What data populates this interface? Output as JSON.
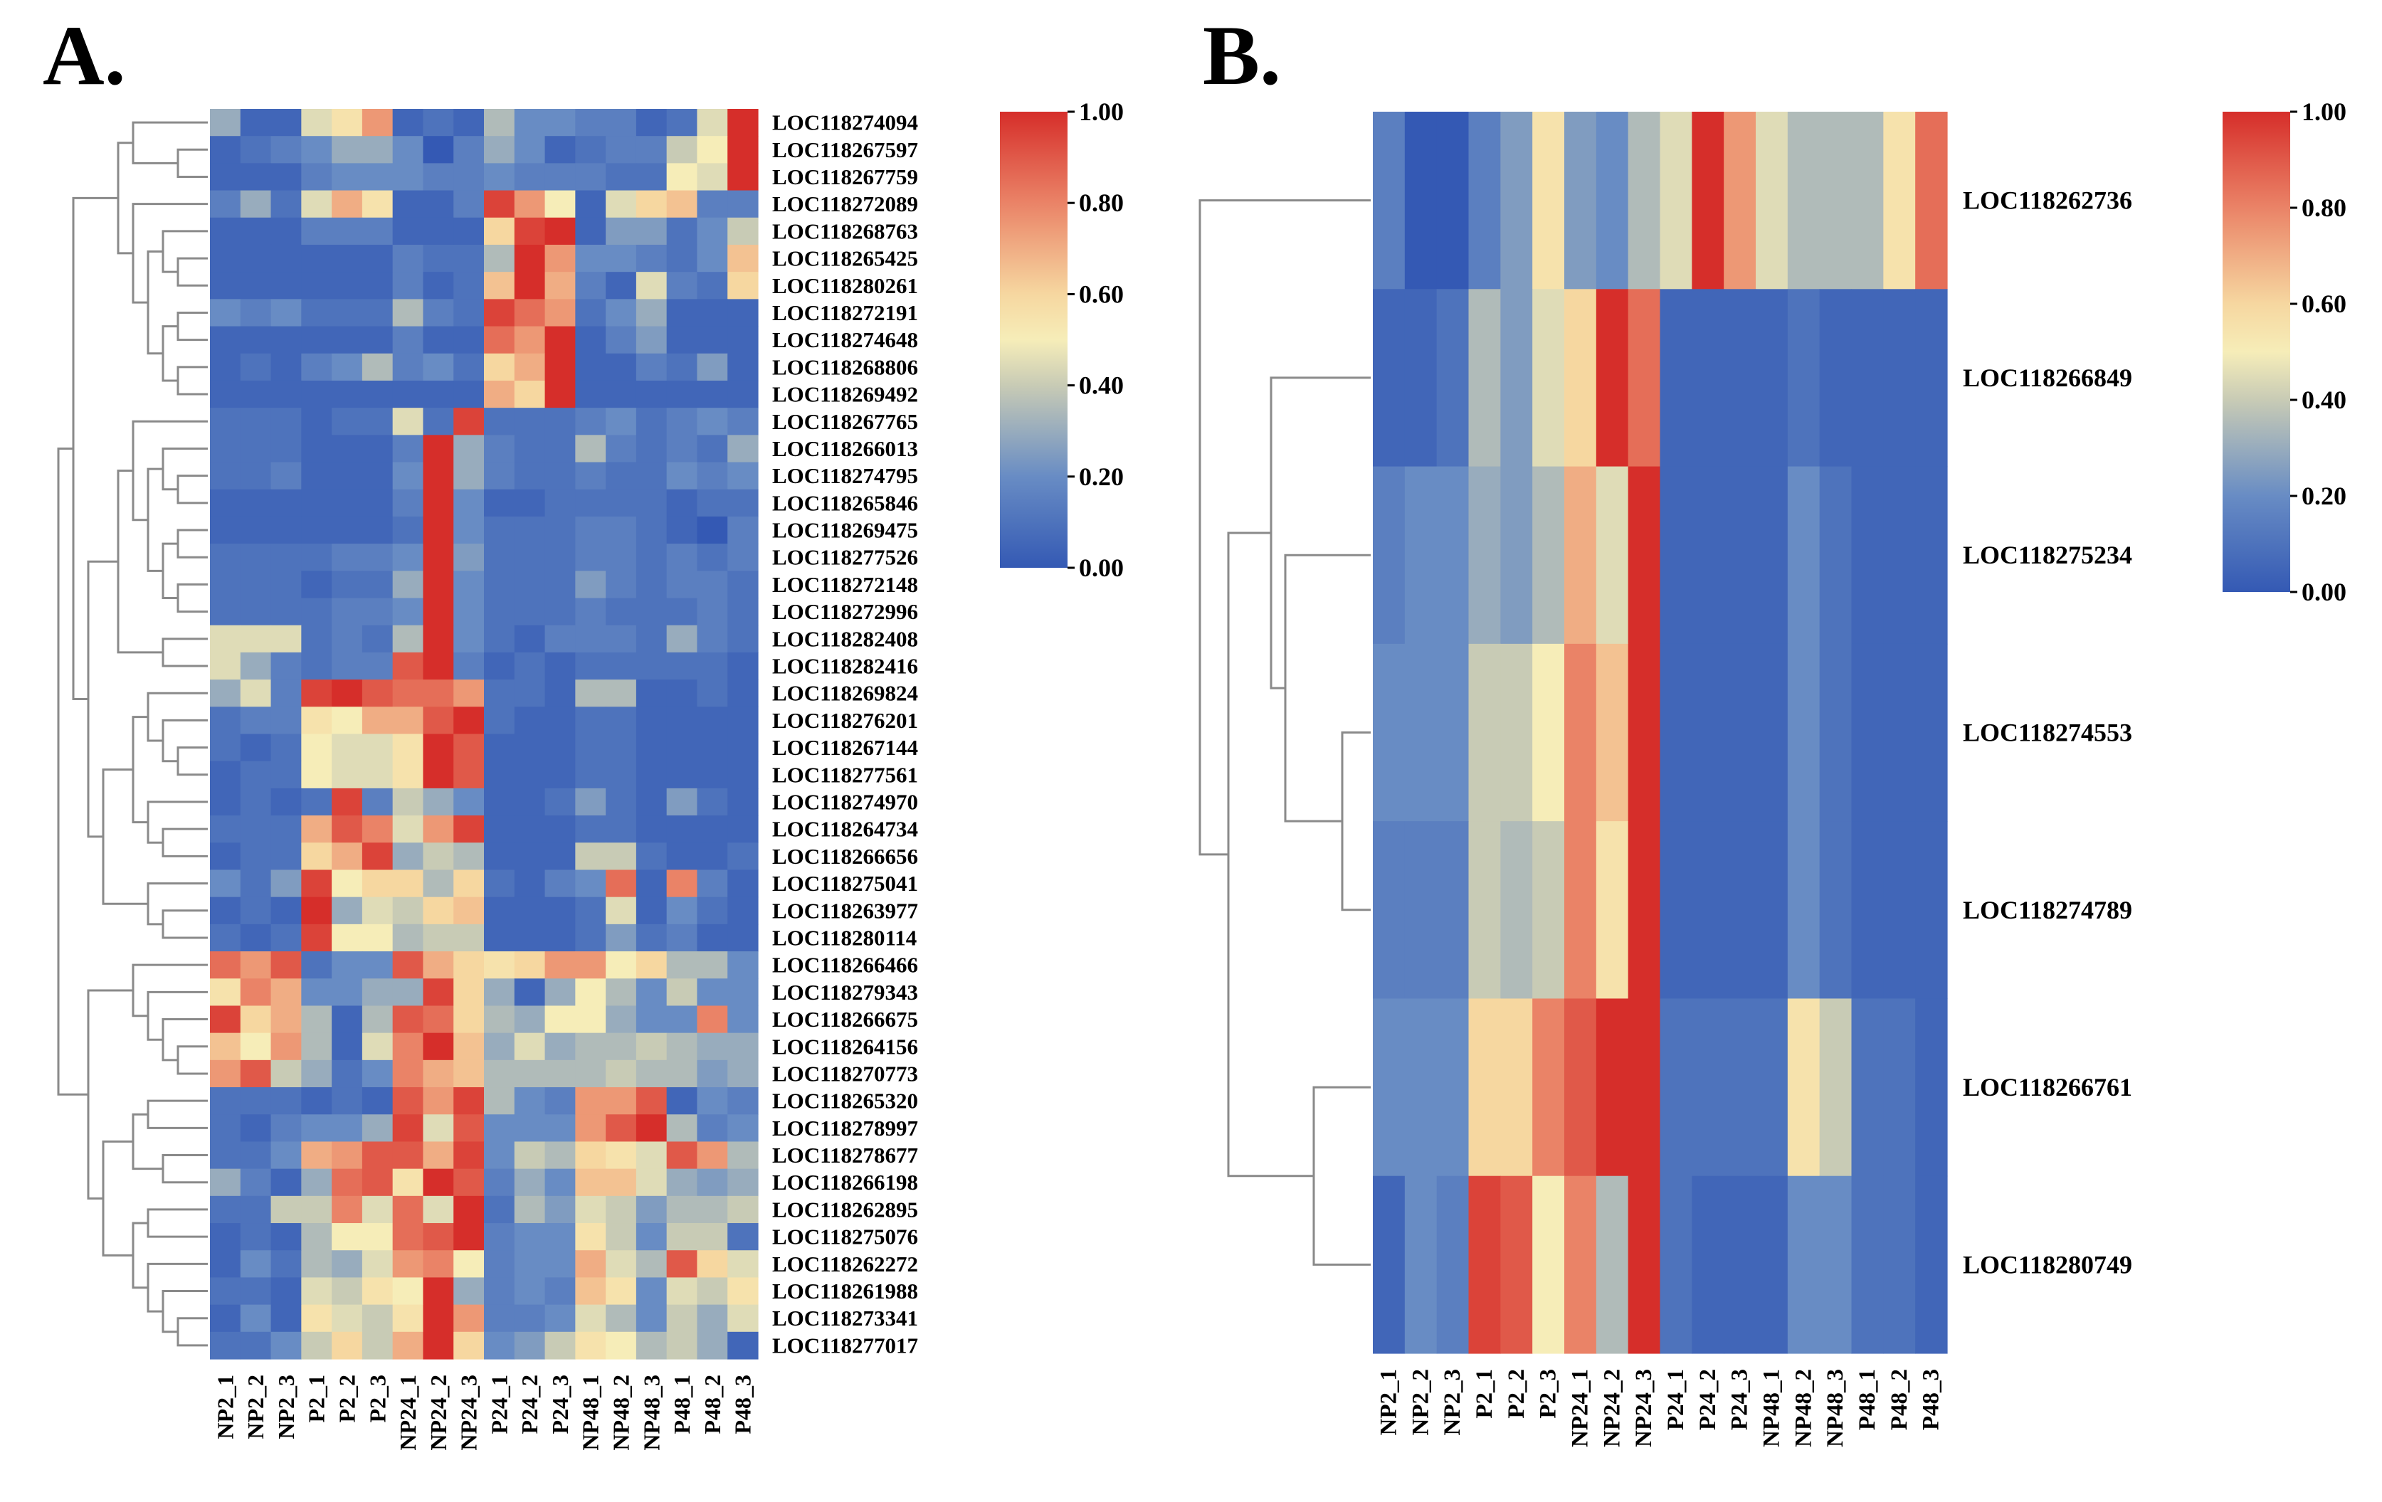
{
  "chart_data": [
    {
      "type": "heatmap",
      "panel_label": "A.",
      "columns": [
        "NP2_1",
        "NP2_2",
        "NP2_3",
        "P2_1",
        "P2_2",
        "P2_3",
        "NP24_1",
        "NP24_2",
        "NP24_3",
        "P24_1",
        "P24_2",
        "P24_3",
        "NP48_1",
        "NP48_2",
        "NP48_3",
        "P48_1",
        "P48_2",
        "P48_3"
      ],
      "rows": [
        "LOC118274094",
        "LOC118267597",
        "LOC118267759",
        "LOC118272089",
        "LOC118268763",
        "LOC118265425",
        "LOC118280261",
        "LOC118272191",
        "LOC118274648",
        "LOC118268806",
        "LOC118269492",
        "LOC118267765",
        "LOC118266013",
        "LOC118274795",
        "LOC118265846",
        "LOC118269475",
        "LOC118277526",
        "LOC118272148",
        "LOC118272996",
        "LOC118282408",
        "LOC118282416",
        "LOC118269824",
        "LOC118276201",
        "LOC118267144",
        "LOC118277561",
        "LOC118274970",
        "LOC118264734",
        "LOC118266656",
        "LOC118275041",
        "LOC118263977",
        "LOC118280114",
        "LOC118266466",
        "LOC118279343",
        "LOC118266675",
        "LOC118264156",
        "LOC118270773",
        "LOC118265320",
        "LOC118278997",
        "LOC118278677",
        "LOC118266198",
        "LOC118262895",
        "LOC118275076",
        "LOC118262272",
        "LOC118261988",
        "LOC118273341",
        "LOC118277017"
      ],
      "values": [
        [
          0.3,
          0.05,
          0.05,
          0.45,
          0.55,
          0.75,
          0.05,
          0.1,
          0.05,
          0.35,
          0.2,
          0.2,
          0.15,
          0.15,
          0.05,
          0.1,
          0.45,
          1.0
        ],
        [
          0.05,
          0.1,
          0.15,
          0.2,
          0.3,
          0.3,
          0.2,
          0.0,
          0.15,
          0.3,
          0.2,
          0.05,
          0.1,
          0.15,
          0.15,
          0.4,
          0.5,
          1.0
        ],
        [
          0.05,
          0.05,
          0.05,
          0.15,
          0.2,
          0.2,
          0.2,
          0.15,
          0.15,
          0.2,
          0.15,
          0.15,
          0.15,
          0.1,
          0.1,
          0.5,
          0.45,
          1.0
        ],
        [
          0.15,
          0.3,
          0.1,
          0.45,
          0.7,
          0.55,
          0.05,
          0.05,
          0.15,
          0.95,
          0.75,
          0.5,
          0.05,
          0.45,
          0.6,
          0.65,
          0.15,
          0.15
        ],
        [
          0.05,
          0.05,
          0.05,
          0.15,
          0.15,
          0.15,
          0.05,
          0.05,
          0.05,
          0.6,
          0.95,
          1.0,
          0.05,
          0.25,
          0.25,
          0.1,
          0.2,
          0.4
        ],
        [
          0.05,
          0.05,
          0.05,
          0.05,
          0.05,
          0.05,
          0.15,
          0.1,
          0.1,
          0.35,
          1.0,
          0.75,
          0.2,
          0.2,
          0.15,
          0.1,
          0.2,
          0.65
        ],
        [
          0.05,
          0.05,
          0.05,
          0.05,
          0.05,
          0.05,
          0.15,
          0.05,
          0.1,
          0.65,
          1.0,
          0.7,
          0.15,
          0.05,
          0.45,
          0.15,
          0.1,
          0.6
        ],
        [
          0.2,
          0.15,
          0.2,
          0.1,
          0.1,
          0.1,
          0.35,
          0.15,
          0.1,
          0.95,
          0.85,
          0.75,
          0.1,
          0.2,
          0.3,
          0.05,
          0.05,
          0.05
        ],
        [
          0.05,
          0.05,
          0.05,
          0.05,
          0.05,
          0.05,
          0.15,
          0.05,
          0.05,
          0.85,
          0.75,
          1.0,
          0.05,
          0.15,
          0.25,
          0.05,
          0.05,
          0.05
        ],
        [
          0.05,
          0.1,
          0.05,
          0.15,
          0.2,
          0.35,
          0.15,
          0.2,
          0.1,
          0.6,
          0.7,
          1.0,
          0.05,
          0.05,
          0.15,
          0.1,
          0.25,
          0.05
        ],
        [
          0.05,
          0.05,
          0.05,
          0.05,
          0.05,
          0.05,
          0.05,
          0.05,
          0.05,
          0.7,
          0.6,
          1.0,
          0.05,
          0.05,
          0.05,
          0.05,
          0.05,
          0.05
        ],
        [
          0.1,
          0.1,
          0.1,
          0.05,
          0.1,
          0.1,
          0.45,
          0.1,
          0.95,
          0.1,
          0.1,
          0.1,
          0.15,
          0.2,
          0.1,
          0.15,
          0.2,
          0.15
        ],
        [
          0.1,
          0.1,
          0.1,
          0.05,
          0.05,
          0.05,
          0.15,
          1.0,
          0.3,
          0.15,
          0.1,
          0.1,
          0.35,
          0.15,
          0.1,
          0.15,
          0.1,
          0.3
        ],
        [
          0.1,
          0.1,
          0.15,
          0.05,
          0.05,
          0.05,
          0.2,
          1.0,
          0.3,
          0.15,
          0.1,
          0.1,
          0.15,
          0.1,
          0.1,
          0.2,
          0.15,
          0.2
        ],
        [
          0.05,
          0.05,
          0.05,
          0.05,
          0.05,
          0.05,
          0.15,
          1.0,
          0.2,
          0.05,
          0.05,
          0.1,
          0.1,
          0.1,
          0.1,
          0.05,
          0.1,
          0.1
        ],
        [
          0.05,
          0.05,
          0.05,
          0.05,
          0.05,
          0.05,
          0.1,
          1.0,
          0.2,
          0.1,
          0.1,
          0.1,
          0.15,
          0.15,
          0.1,
          0.05,
          0.0,
          0.15
        ],
        [
          0.1,
          0.1,
          0.1,
          0.1,
          0.15,
          0.15,
          0.2,
          1.0,
          0.25,
          0.1,
          0.1,
          0.1,
          0.15,
          0.15,
          0.1,
          0.15,
          0.1,
          0.15
        ],
        [
          0.1,
          0.1,
          0.1,
          0.05,
          0.1,
          0.1,
          0.3,
          1.0,
          0.2,
          0.1,
          0.1,
          0.1,
          0.25,
          0.15,
          0.1,
          0.15,
          0.15,
          0.1
        ],
        [
          0.1,
          0.1,
          0.1,
          0.1,
          0.15,
          0.15,
          0.2,
          1.0,
          0.2,
          0.1,
          0.1,
          0.1,
          0.15,
          0.1,
          0.1,
          0.1,
          0.15,
          0.1
        ],
        [
          0.45,
          0.45,
          0.45,
          0.1,
          0.15,
          0.1,
          0.35,
          1.0,
          0.2,
          0.1,
          0.05,
          0.15,
          0.15,
          0.15,
          0.1,
          0.3,
          0.15,
          0.1
        ],
        [
          0.45,
          0.3,
          0.15,
          0.1,
          0.15,
          0.15,
          0.9,
          1.0,
          0.15,
          0.05,
          0.1,
          0.05,
          0.1,
          0.1,
          0.1,
          0.1,
          0.1,
          0.05
        ],
        [
          0.3,
          0.45,
          0.15,
          0.95,
          1.0,
          0.9,
          0.85,
          0.85,
          0.75,
          0.1,
          0.1,
          0.05,
          0.35,
          0.35,
          0.05,
          0.05,
          0.1,
          0.05
        ],
        [
          0.1,
          0.15,
          0.15,
          0.55,
          0.5,
          0.7,
          0.7,
          0.9,
          1.0,
          0.1,
          0.05,
          0.05,
          0.1,
          0.1,
          0.05,
          0.05,
          0.05,
          0.05
        ],
        [
          0.1,
          0.05,
          0.1,
          0.5,
          0.45,
          0.45,
          0.55,
          1.0,
          0.9,
          0.05,
          0.05,
          0.05,
          0.1,
          0.1,
          0.05,
          0.05,
          0.05,
          0.05
        ],
        [
          0.05,
          0.1,
          0.1,
          0.5,
          0.45,
          0.45,
          0.55,
          1.0,
          0.9,
          0.05,
          0.05,
          0.05,
          0.1,
          0.1,
          0.05,
          0.05,
          0.05,
          0.05
        ],
        [
          0.05,
          0.1,
          0.05,
          0.1,
          0.95,
          0.15,
          0.4,
          0.3,
          0.2,
          0.05,
          0.05,
          0.1,
          0.25,
          0.1,
          0.05,
          0.25,
          0.1,
          0.05
        ],
        [
          0.1,
          0.1,
          0.1,
          0.7,
          0.9,
          0.8,
          0.45,
          0.75,
          0.95,
          0.05,
          0.05,
          0.05,
          0.1,
          0.1,
          0.05,
          0.05,
          0.05,
          0.05
        ],
        [
          0.05,
          0.1,
          0.1,
          0.6,
          0.7,
          0.95,
          0.3,
          0.4,
          0.35,
          0.05,
          0.05,
          0.05,
          0.4,
          0.4,
          0.1,
          0.05,
          0.05,
          0.1
        ],
        [
          0.2,
          0.1,
          0.25,
          0.95,
          0.5,
          0.6,
          0.6,
          0.35,
          0.6,
          0.1,
          0.05,
          0.15,
          0.2,
          0.85,
          0.05,
          0.8,
          0.15,
          0.05
        ],
        [
          0.05,
          0.1,
          0.05,
          1.0,
          0.3,
          0.45,
          0.4,
          0.6,
          0.65,
          0.05,
          0.05,
          0.05,
          0.1,
          0.45,
          0.05,
          0.2,
          0.1,
          0.05
        ],
        [
          0.1,
          0.05,
          0.1,
          0.95,
          0.5,
          0.5,
          0.35,
          0.4,
          0.4,
          0.05,
          0.05,
          0.05,
          0.1,
          0.25,
          0.1,
          0.15,
          0.05,
          0.05
        ],
        [
          0.85,
          0.75,
          0.9,
          0.1,
          0.2,
          0.2,
          0.9,
          0.7,
          0.6,
          0.55,
          0.6,
          0.75,
          0.75,
          0.5,
          0.6,
          0.35,
          0.35,
          0.2
        ],
        [
          0.55,
          0.8,
          0.7,
          0.2,
          0.2,
          0.3,
          0.3,
          0.95,
          0.6,
          0.3,
          0.05,
          0.3,
          0.5,
          0.35,
          0.2,
          0.4,
          0.2,
          0.2
        ],
        [
          0.95,
          0.6,
          0.7,
          0.35,
          0.05,
          0.35,
          0.9,
          0.85,
          0.6,
          0.35,
          0.3,
          0.5,
          0.5,
          0.3,
          0.2,
          0.2,
          0.8,
          0.2
        ],
        [
          0.65,
          0.5,
          0.75,
          0.35,
          0.05,
          0.45,
          0.8,
          1.0,
          0.65,
          0.3,
          0.45,
          0.3,
          0.35,
          0.35,
          0.4,
          0.35,
          0.3,
          0.3
        ],
        [
          0.75,
          0.9,
          0.4,
          0.3,
          0.1,
          0.2,
          0.8,
          0.7,
          0.65,
          0.35,
          0.35,
          0.35,
          0.35,
          0.4,
          0.35,
          0.35,
          0.25,
          0.3
        ],
        [
          0.1,
          0.1,
          0.1,
          0.05,
          0.1,
          0.05,
          0.9,
          0.75,
          0.95,
          0.35,
          0.2,
          0.15,
          0.75,
          0.75,
          0.9,
          0.05,
          0.2,
          0.15
        ],
        [
          0.1,
          0.05,
          0.15,
          0.2,
          0.2,
          0.3,
          0.95,
          0.45,
          0.9,
          0.2,
          0.2,
          0.2,
          0.75,
          0.9,
          1.0,
          0.35,
          0.15,
          0.2
        ],
        [
          0.1,
          0.1,
          0.2,
          0.7,
          0.75,
          0.9,
          0.9,
          0.7,
          0.95,
          0.2,
          0.4,
          0.35,
          0.6,
          0.55,
          0.45,
          0.9,
          0.75,
          0.35
        ],
        [
          0.3,
          0.15,
          0.05,
          0.3,
          0.85,
          0.9,
          0.55,
          1.0,
          0.9,
          0.15,
          0.3,
          0.2,
          0.65,
          0.65,
          0.45,
          0.3,
          0.25,
          0.3
        ],
        [
          0.1,
          0.1,
          0.4,
          0.4,
          0.8,
          0.45,
          0.85,
          0.45,
          1.0,
          0.1,
          0.35,
          0.25,
          0.45,
          0.4,
          0.25,
          0.35,
          0.35,
          0.4
        ],
        [
          0.05,
          0.1,
          0.05,
          0.35,
          0.5,
          0.5,
          0.85,
          0.9,
          1.0,
          0.15,
          0.2,
          0.2,
          0.55,
          0.4,
          0.2,
          0.4,
          0.4,
          0.1
        ],
        [
          0.05,
          0.2,
          0.1,
          0.35,
          0.3,
          0.45,
          0.75,
          0.8,
          0.5,
          0.15,
          0.2,
          0.2,
          0.7,
          0.45,
          0.35,
          0.9,
          0.6,
          0.45
        ],
        [
          0.1,
          0.1,
          0.05,
          0.45,
          0.4,
          0.55,
          0.5,
          1.0,
          0.3,
          0.15,
          0.2,
          0.15,
          0.65,
          0.55,
          0.2,
          0.45,
          0.4,
          0.55
        ],
        [
          0.05,
          0.2,
          0.05,
          0.55,
          0.45,
          0.4,
          0.55,
          1.0,
          0.75,
          0.15,
          0.15,
          0.2,
          0.45,
          0.35,
          0.2,
          0.4,
          0.3,
          0.45
        ],
        [
          0.1,
          0.1,
          0.2,
          0.4,
          0.6,
          0.4,
          0.7,
          1.0,
          0.6,
          0.2,
          0.25,
          0.4,
          0.55,
          0.5,
          0.35,
          0.4,
          0.3,
          0.05
        ]
      ],
      "colorbar": {
        "min": 0,
        "max": 1,
        "ticks": [
          "0.00",
          "0.20",
          "0.40",
          "0.60",
          "0.80",
          "1.00"
        ]
      }
    },
    {
      "type": "heatmap",
      "panel_label": "B.",
      "columns": [
        "NP2_1",
        "NP2_2",
        "NP2_3",
        "P2_1",
        "P2_2",
        "P2_3",
        "NP24_1",
        "NP24_2",
        "NP24_3",
        "P24_1",
        "P24_2",
        "P24_3",
        "NP48_1",
        "NP48_2",
        "NP48_3",
        "P48_1",
        "P48_2",
        "P48_3"
      ],
      "rows": [
        "LOC118262736",
        "LOC118266849",
        "LOC118275234",
        "LOC118274553",
        "LOC118274789",
        "LOC118266761",
        "LOC118280749"
      ],
      "values": [
        [
          0.15,
          0.0,
          0.0,
          0.15,
          0.25,
          0.55,
          0.25,
          0.2,
          0.35,
          0.45,
          1.0,
          0.75,
          0.45,
          0.35,
          0.35,
          0.35,
          0.55,
          0.85
        ],
        [
          0.05,
          0.05,
          0.1,
          0.35,
          0.25,
          0.45,
          0.6,
          1.0,
          0.85,
          0.05,
          0.05,
          0.05,
          0.05,
          0.1,
          0.05,
          0.05,
          0.05,
          0.05
        ],
        [
          0.15,
          0.2,
          0.2,
          0.3,
          0.25,
          0.35,
          0.7,
          0.45,
          1.0,
          0.05,
          0.05,
          0.05,
          0.05,
          0.2,
          0.1,
          0.05,
          0.05,
          0.05
        ],
        [
          0.2,
          0.2,
          0.2,
          0.4,
          0.4,
          0.5,
          0.8,
          0.65,
          1.0,
          0.05,
          0.05,
          0.05,
          0.05,
          0.2,
          0.1,
          0.05,
          0.05,
          0.05
        ],
        [
          0.15,
          0.15,
          0.15,
          0.4,
          0.35,
          0.4,
          0.8,
          0.55,
          1.0,
          0.05,
          0.05,
          0.05,
          0.05,
          0.2,
          0.1,
          0.05,
          0.05,
          0.05
        ],
        [
          0.2,
          0.2,
          0.2,
          0.6,
          0.6,
          0.8,
          0.9,
          1.0,
          1.0,
          0.1,
          0.1,
          0.1,
          0.1,
          0.55,
          0.4,
          0.1,
          0.1,
          0.05
        ],
        [
          0.05,
          0.2,
          0.15,
          0.95,
          0.9,
          0.5,
          0.8,
          0.35,
          1.0,
          0.1,
          0.05,
          0.05,
          0.05,
          0.2,
          0.2,
          0.1,
          0.1,
          0.05
        ]
      ],
      "colorbar": {
        "min": 0,
        "max": 1,
        "ticks": [
          "0.00",
          "0.20",
          "0.40",
          "0.60",
          "0.80",
          "1.00"
        ]
      }
    }
  ]
}
